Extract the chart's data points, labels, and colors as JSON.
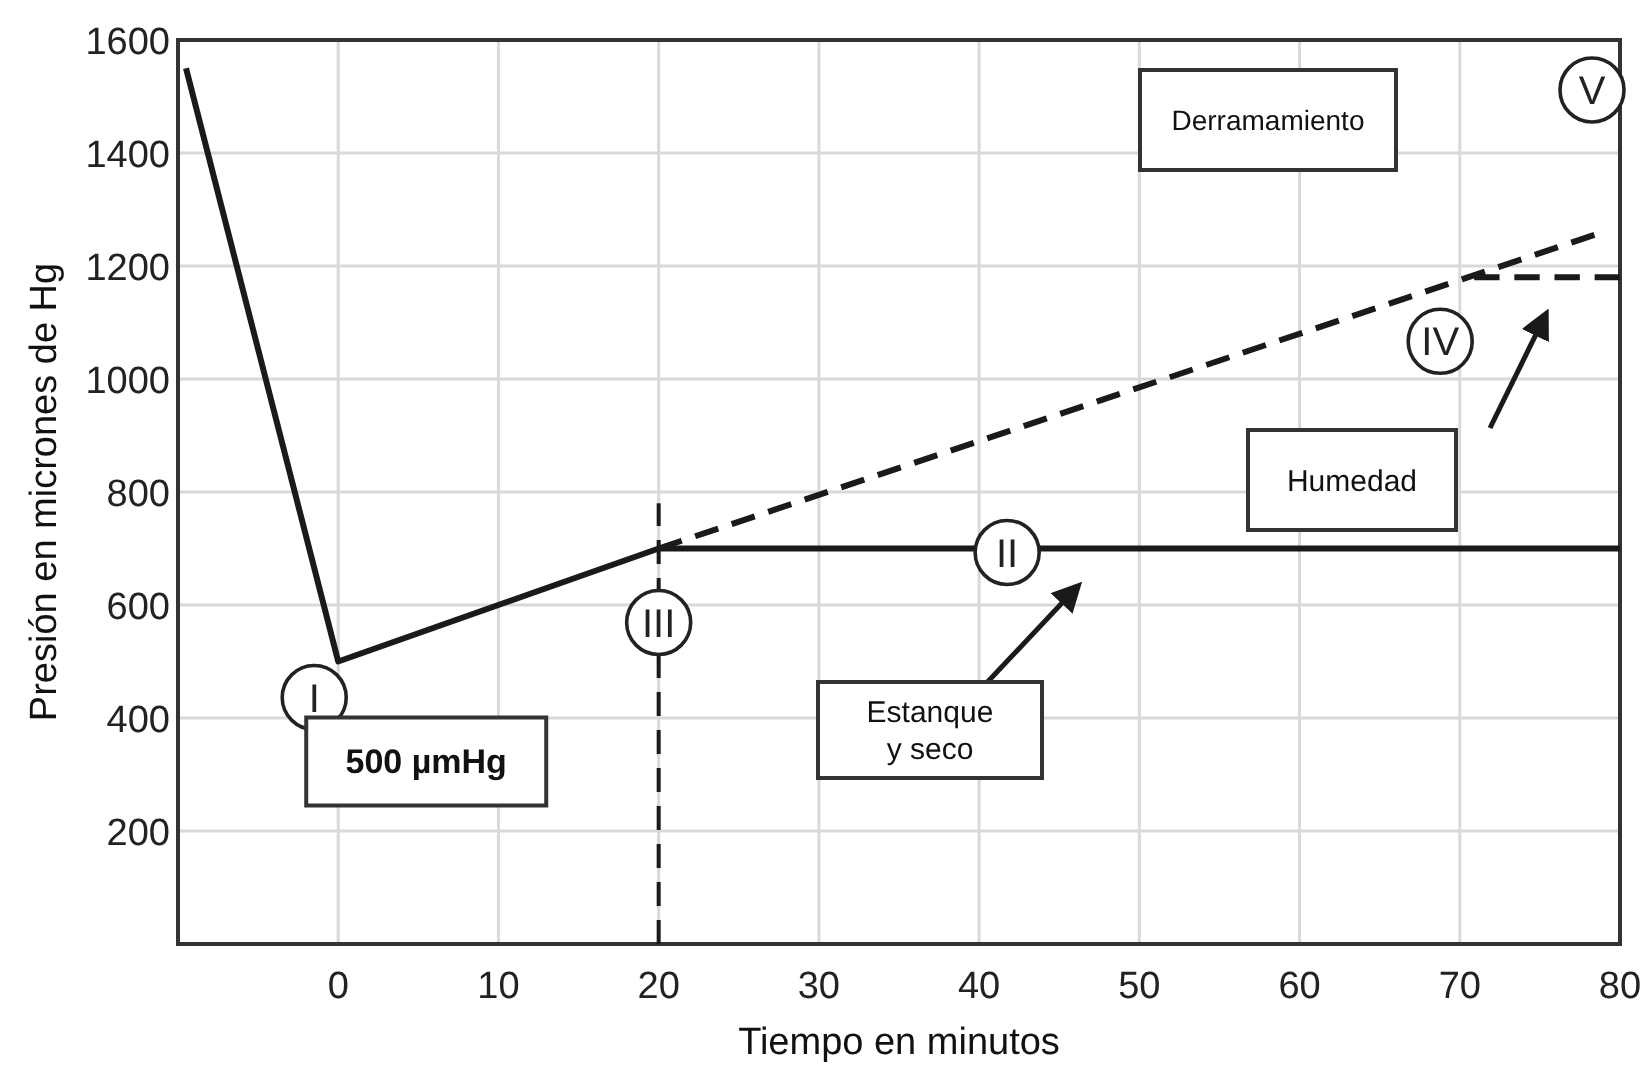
{
  "chart_data": {
    "type": "line",
    "xlabel": "Tiempo en minutos",
    "ylabel": "Presión en micrones de Hg",
    "xlim": [
      -10,
      80
    ],
    "xticks": [
      0,
      10,
      20,
      30,
      40,
      50,
      60,
      70,
      80
    ],
    "ylim": [
      0,
      1600
    ],
    "yticks": [
      200,
      400,
      600,
      800,
      1000,
      1200,
      1400,
      1600
    ],
    "grid": true,
    "series": [
      {
        "x": [
          -9.5,
          0,
          20,
          80
        ],
        "values": [
          1550,
          500,
          700,
          700
        ],
        "color": "#1a1a1a",
        "line_style": "solid"
      },
      {
        "x": [
          20,
          78.4
        ],
        "values": [
          700,
          1255
        ],
        "color": "#1a1a1a",
        "line_style": "dashed"
      },
      {
        "x": [
          70.9,
          80
        ],
        "values": [
          1180,
          1180
        ],
        "color": "#1a1a1a",
        "line_style": "dashed"
      }
    ],
    "ref_lines": [
      {
        "axis": "x",
        "value": 20,
        "color": "#1a1a1a",
        "line_style": "dashed"
      }
    ],
    "annotations": [
      {
        "text": "I",
        "x": 0,
        "y": 500
      },
      {
        "text": "500 µmHg",
        "x": 0,
        "y": 500
      },
      {
        "text": "II",
        "x": 42,
        "y": 700
      },
      {
        "text": "III",
        "x": 20,
        "y": 700
      },
      {
        "text": "IV",
        "x": 70.9,
        "y": 1180
      },
      "V",
      "Derramamiento",
      "Humedad",
      "Estanque y seco"
    ]
  }
}
